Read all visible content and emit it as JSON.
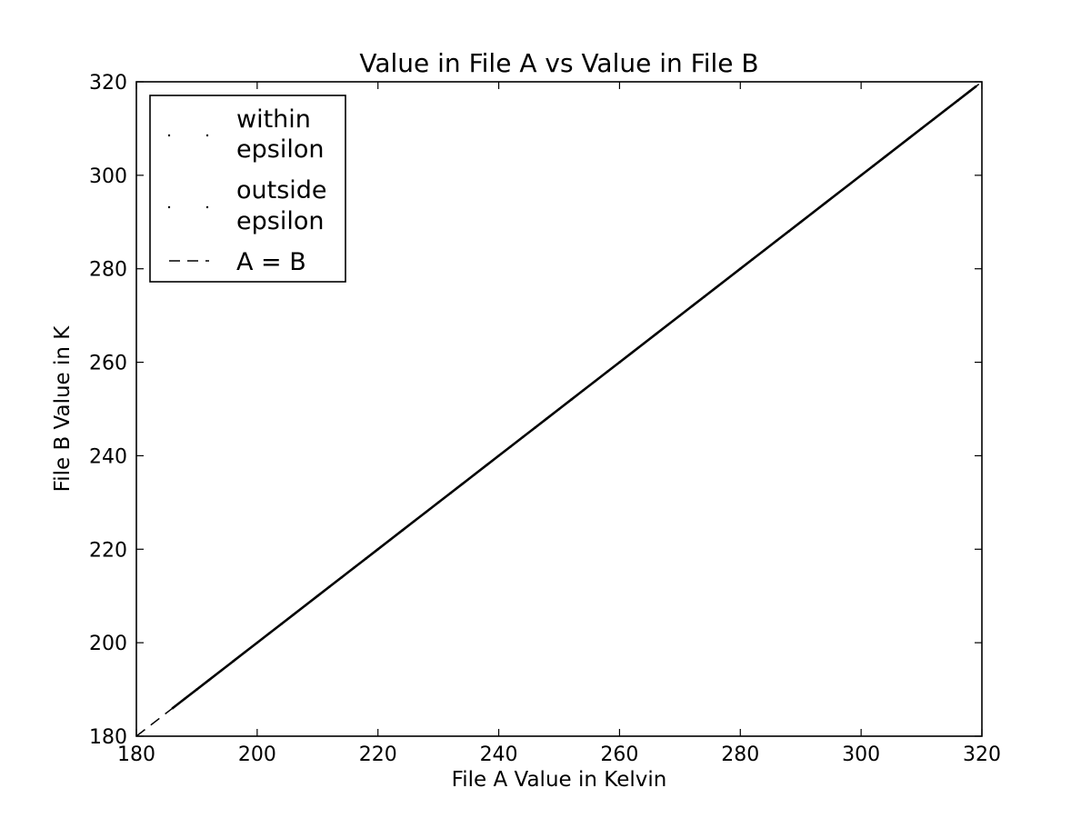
{
  "chart_data": {
    "type": "scatter",
    "title": "Value in File A vs Value in File B",
    "xlabel": "File A Value in Kelvin",
    "ylabel": "File B Value in K",
    "xlim": [
      180,
      320
    ],
    "ylim": [
      180,
      320
    ],
    "xticks": [
      "180",
      "200",
      "220",
      "240",
      "260",
      "280",
      "300",
      "320"
    ],
    "yticks": [
      "180",
      "200",
      "220",
      "240",
      "260",
      "280",
      "300",
      "320"
    ],
    "grid": false,
    "legend_position": "top-left",
    "series": [
      {
        "name": "within epsilon",
        "marker": "point",
        "color": "#000000",
        "x": [
          186,
          188,
          190,
          192,
          194,
          196,
          198,
          200,
          202,
          204,
          206,
          208,
          210,
          212,
          214,
          216,
          218,
          220,
          222,
          224,
          226,
          228,
          230,
          232,
          234,
          236,
          238,
          240,
          242,
          244,
          246,
          248,
          250,
          252,
          254,
          256,
          258,
          260,
          262,
          264,
          266,
          268,
          270,
          272,
          274,
          276,
          278,
          280,
          282,
          284,
          286,
          288,
          290,
          292,
          294,
          296,
          298,
          300,
          302,
          304,
          306,
          308,
          310,
          312,
          314,
          316,
          318,
          319
        ],
        "y": [
          186,
          188,
          190,
          192,
          194,
          196,
          198,
          200,
          202,
          204,
          206,
          208,
          210,
          212,
          214,
          216,
          218,
          220,
          222,
          224,
          226,
          228,
          230,
          232,
          234,
          236,
          238,
          240,
          242,
          244,
          246,
          248,
          250,
          252,
          254,
          256,
          258,
          260,
          262,
          264,
          266,
          268,
          270,
          272,
          274,
          276,
          278,
          280,
          282,
          284,
          286,
          288,
          290,
          292,
          294,
          296,
          298,
          300,
          302,
          304,
          306,
          308,
          310,
          312,
          314,
          316,
          318,
          319
        ]
      },
      {
        "name": "outside epsilon",
        "marker": "point",
        "color": "#000000",
        "x": [],
        "y": []
      },
      {
        "name": "A = B",
        "marker": "dashed-line",
        "color": "#000000",
        "x": [
          180,
          320
        ],
        "y": [
          180,
          320
        ]
      }
    ]
  },
  "legend": {
    "within_line1": "within",
    "within_line2": "epsilon",
    "outside_line1": "outside",
    "outside_line2": "epsilon",
    "identity": "A = B"
  }
}
